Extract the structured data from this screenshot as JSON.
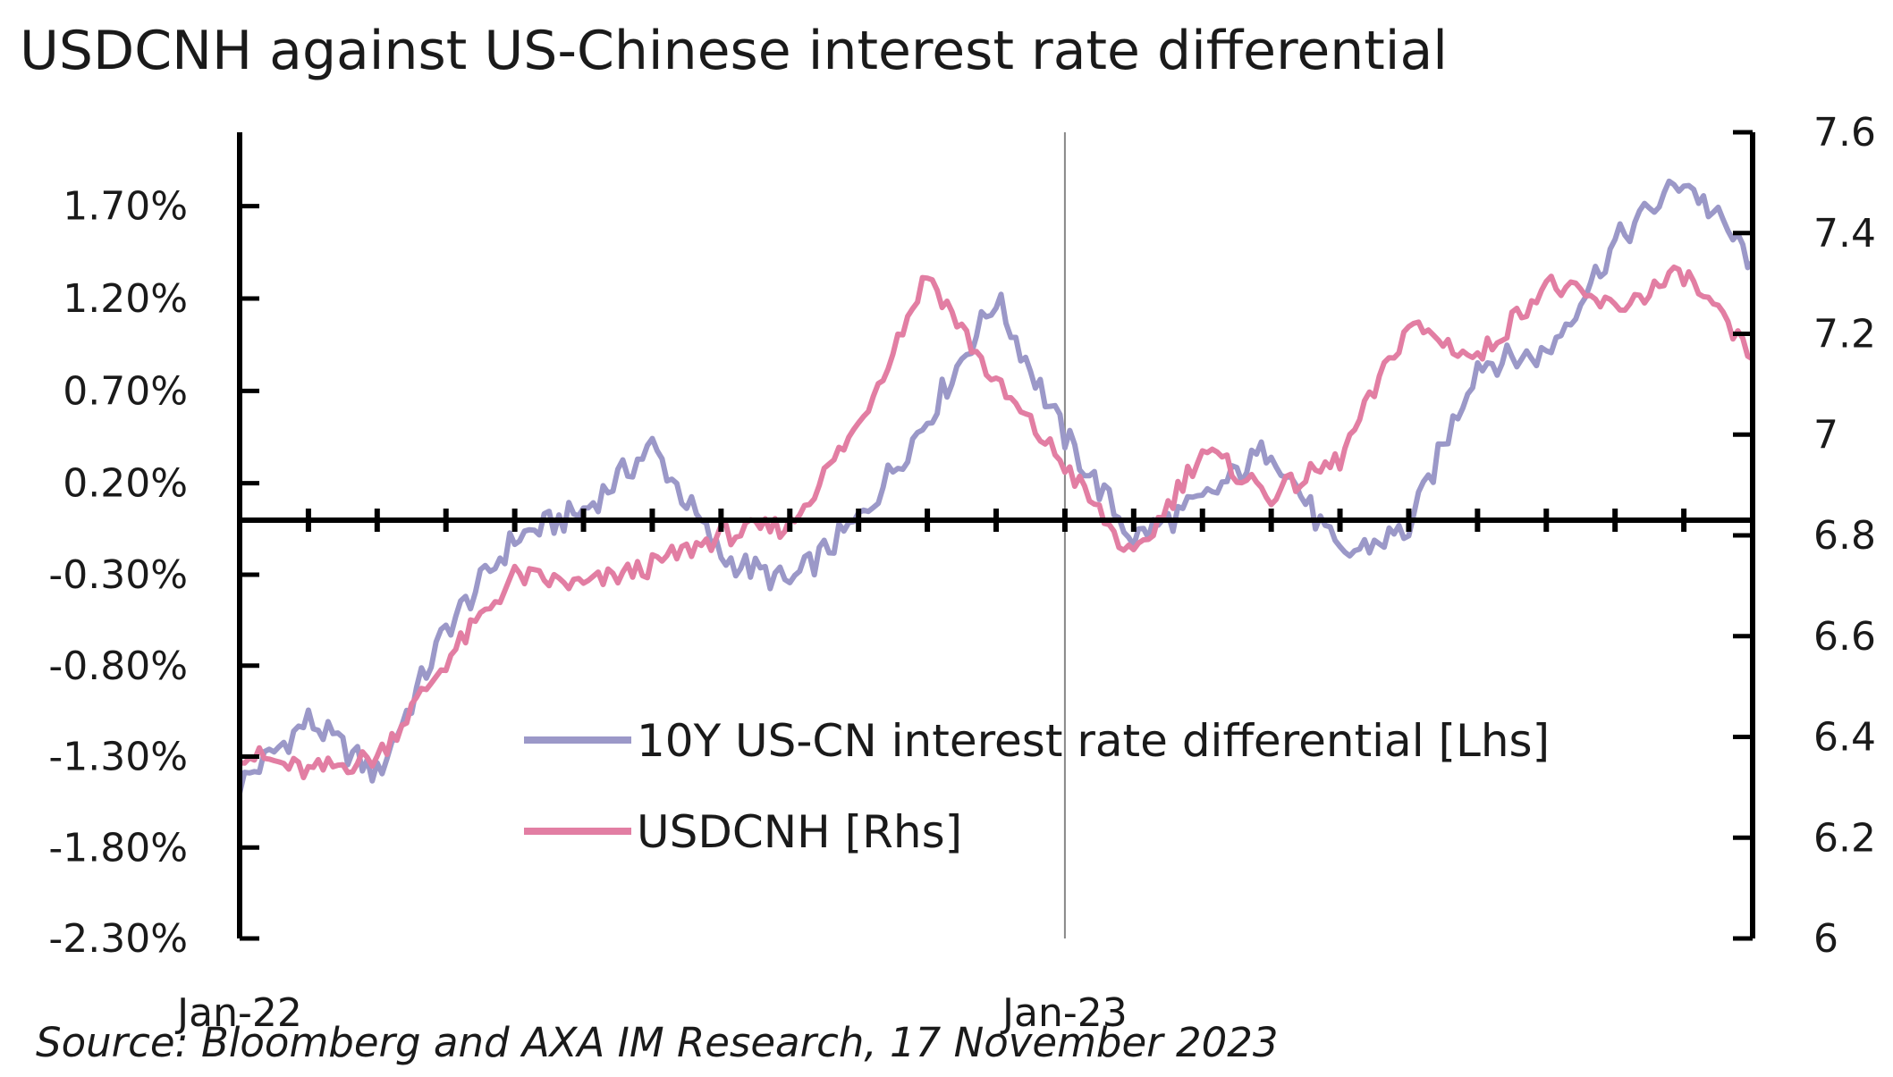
{
  "chart_data": {
    "type": "line",
    "title": "USDCNH against US-Chinese interest rate differential",
    "source": "Source: Bloomberg and AXA IM Research, 17 November 2023",
    "x_range": [
      "2022-01",
      "2023-11"
    ],
    "x_ticks": [
      "Jan-22",
      "Jan-23"
    ],
    "y_left": {
      "ticks": [
        "1.70%",
        "1.20%",
        "0.70%",
        "0.20%",
        "-0.30%",
        "-0.80%",
        "-1.30%",
        "-1.80%",
        "-2.30%"
      ],
      "tick_values": [
        1.7,
        1.2,
        0.7,
        0.2,
        -0.3,
        -0.8,
        -1.3,
        -1.8,
        -2.3
      ],
      "range": [
        -2.3,
        2.1
      ]
    },
    "y_right": {
      "ticks": [
        "7.6",
        "7.4",
        "7.2",
        "7",
        "6.8",
        "6.6",
        "6.4",
        "6.2",
        "6"
      ],
      "tick_values": [
        7.6,
        7.4,
        7.2,
        7.0,
        6.8,
        6.6,
        6.4,
        6.2,
        6.0
      ],
      "range": [
        6.0,
        7.6
      ]
    },
    "legend_placement": "center",
    "series": [
      {
        "name": "10Y US-CN interest rate differential [Lhs]",
        "axis": "left",
        "color": "#9b98c8",
        "x": [
          "2022-01",
          "2022-02",
          "2022-03",
          "2022-04",
          "2022-05",
          "2022-06",
          "2022-07",
          "2022-08",
          "2022-09",
          "2022-10",
          "2022-11",
          "2022-12",
          "2023-01",
          "2023-02",
          "2023-03",
          "2023-04",
          "2023-05",
          "2023-06",
          "2023-07",
          "2023-08",
          "2023-09",
          "2023-10",
          "2023-11"
        ],
        "values": [
          -1.45,
          -1.1,
          -1.4,
          -0.6,
          -0.1,
          0.05,
          0.4,
          -0.2,
          -0.35,
          0.0,
          0.55,
          1.2,
          0.45,
          -0.1,
          0.1,
          0.4,
          -0.2,
          -0.05,
          0.85,
          0.9,
          1.5,
          1.85,
          1.4
        ]
      },
      {
        "name": "USDCNH [Rhs]",
        "axis": "right",
        "color": "#e27ea3",
        "x": [
          "2022-01",
          "2022-02",
          "2022-03",
          "2022-04",
          "2022-05",
          "2022-06",
          "2022-07",
          "2022-08",
          "2022-09",
          "2022-10",
          "2022-11",
          "2022-12",
          "2023-01",
          "2023-02",
          "2023-03",
          "2023-04",
          "2023-05",
          "2023-06",
          "2023-07",
          "2023-08",
          "2023-09",
          "2023-10",
          "2023-11"
        ],
        "values": [
          6.37,
          6.33,
          6.36,
          6.55,
          6.72,
          6.7,
          6.74,
          6.8,
          6.82,
          7.02,
          7.32,
          7.1,
          6.94,
          6.75,
          6.97,
          6.88,
          6.95,
          7.22,
          7.15,
          7.3,
          7.25,
          7.32,
          7.15
        ]
      }
    ]
  }
}
